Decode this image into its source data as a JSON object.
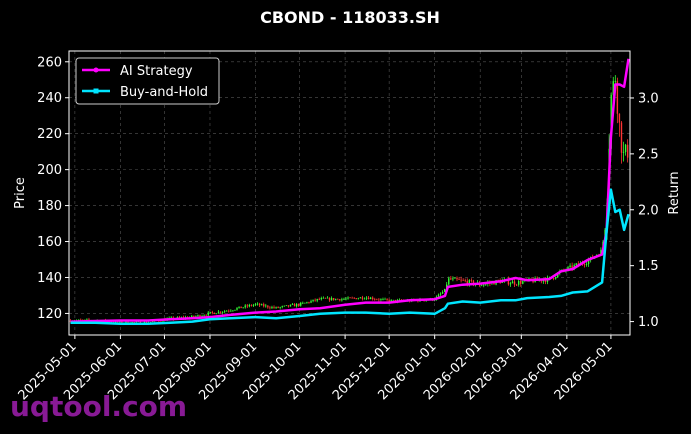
{
  "chart_data": {
    "type": "line",
    "title": "CBOND - 118033.SH",
    "xlabel": "",
    "ylabel": "Price",
    "y2label": "Return",
    "xlim": [
      "2025-04-27",
      "2026-05-14"
    ],
    "ylim": [
      108,
      266
    ],
    "y2lim": [
      0.88,
      3.42
    ],
    "x_ticks": [
      "2025-05-01",
      "2025-06-01",
      "2025-07-01",
      "2025-08-01",
      "2025-09-01",
      "2025-10-01",
      "2025-11-01",
      "2025-12-01",
      "2026-01-01",
      "2026-02-01",
      "2026-03-01",
      "2026-04-01",
      "2026-05-01"
    ],
    "y_ticks": [
      120,
      140,
      160,
      180,
      200,
      220,
      240,
      260
    ],
    "y2_ticks": [
      1.0,
      1.5,
      2.0,
      2.5,
      3.0
    ],
    "grid": true,
    "legend_position": "top-left",
    "series": [
      {
        "name": "AI Strategy",
        "axis": "right",
        "color": "#ff00ff",
        "marker": "circle",
        "points": [
          [
            "2025-04-28",
            1.0
          ],
          [
            "2025-05-15",
            1.005
          ],
          [
            "2025-06-01",
            1.01
          ],
          [
            "2025-06-20",
            1.01
          ],
          [
            "2025-07-05",
            1.02
          ],
          [
            "2025-07-20",
            1.03
          ],
          [
            "2025-08-01",
            1.04
          ],
          [
            "2025-08-15",
            1.06
          ],
          [
            "2025-09-01",
            1.08
          ],
          [
            "2025-09-15",
            1.09
          ],
          [
            "2025-10-01",
            1.11
          ],
          [
            "2025-10-15",
            1.12
          ],
          [
            "2025-11-01",
            1.15
          ],
          [
            "2025-11-15",
            1.17
          ],
          [
            "2025-12-01",
            1.17
          ],
          [
            "2025-12-15",
            1.19
          ],
          [
            "2026-01-01",
            1.2
          ],
          [
            "2026-01-08",
            1.23
          ],
          [
            "2026-01-10",
            1.31
          ],
          [
            "2026-01-20",
            1.33
          ],
          [
            "2026-02-01",
            1.34
          ],
          [
            "2026-02-15",
            1.36
          ],
          [
            "2026-02-25",
            1.39
          ],
          [
            "2026-03-05",
            1.37
          ],
          [
            "2026-03-20",
            1.38
          ],
          [
            "2026-03-28",
            1.45
          ],
          [
            "2026-04-05",
            1.47
          ],
          [
            "2026-04-15",
            1.55
          ],
          [
            "2026-04-25",
            1.6
          ],
          [
            "2026-04-28",
            1.8
          ],
          [
            "2026-05-01",
            2.65
          ],
          [
            "2026-05-04",
            3.12
          ],
          [
            "2026-05-07",
            3.12
          ],
          [
            "2026-05-10",
            3.1
          ],
          [
            "2026-05-13",
            3.35
          ]
        ]
      },
      {
        "name": "Buy-and-Hold",
        "axis": "right",
        "color": "#00e5ff",
        "marker": "square",
        "points": [
          [
            "2025-04-28",
            0.99
          ],
          [
            "2025-05-15",
            0.99
          ],
          [
            "2025-06-01",
            0.98
          ],
          [
            "2025-06-20",
            0.98
          ],
          [
            "2025-07-05",
            0.99
          ],
          [
            "2025-07-20",
            1.0
          ],
          [
            "2025-08-01",
            1.02
          ],
          [
            "2025-08-15",
            1.03
          ],
          [
            "2025-09-01",
            1.04
          ],
          [
            "2025-09-15",
            1.03
          ],
          [
            "2025-10-01",
            1.05
          ],
          [
            "2025-10-15",
            1.07
          ],
          [
            "2025-11-01",
            1.08
          ],
          [
            "2025-11-15",
            1.08
          ],
          [
            "2025-12-01",
            1.07
          ],
          [
            "2025-12-15",
            1.08
          ],
          [
            "2026-01-01",
            1.07
          ],
          [
            "2026-01-08",
            1.12
          ],
          [
            "2026-01-10",
            1.16
          ],
          [
            "2026-01-20",
            1.18
          ],
          [
            "2026-02-01",
            1.17
          ],
          [
            "2026-02-15",
            1.19
          ],
          [
            "2026-02-25",
            1.19
          ],
          [
            "2026-03-05",
            1.21
          ],
          [
            "2026-03-20",
            1.22
          ],
          [
            "2026-03-28",
            1.23
          ],
          [
            "2026-04-05",
            1.26
          ],
          [
            "2026-04-15",
            1.27
          ],
          [
            "2026-04-25",
            1.35
          ],
          [
            "2026-04-28",
            1.8
          ],
          [
            "2026-05-01",
            2.18
          ],
          [
            "2026-05-04",
            1.98
          ],
          [
            "2026-05-07",
            2.0
          ],
          [
            "2026-05-10",
            1.82
          ],
          [
            "2026-05-13",
            1.96
          ]
        ]
      }
    ],
    "price_candles": {
      "axis": "left",
      "up_color": "#33ff33",
      "down_color": "#ff3333",
      "approx_close_path": [
        [
          "2025-04-28",
          116
        ],
        [
          "2025-05-15",
          116
        ],
        [
          "2025-06-01",
          115
        ],
        [
          "2025-06-20",
          115
        ],
        [
          "2025-07-05",
          117
        ],
        [
          "2025-07-20",
          118
        ],
        [
          "2025-08-01",
          120
        ],
        [
          "2025-08-15",
          122
        ],
        [
          "2025-09-01",
          125
        ],
        [
          "2025-09-15",
          123
        ],
        [
          "2025-10-01",
          125
        ],
        [
          "2025-10-15",
          128
        ],
        [
          "2025-11-01",
          128
        ],
        [
          "2025-11-15",
          129
        ],
        [
          "2025-12-01",
          127
        ],
        [
          "2025-12-15",
          127
        ],
        [
          "2026-01-01",
          128
        ],
        [
          "2026-01-08",
          133
        ],
        [
          "2026-01-10",
          139
        ],
        [
          "2026-01-20",
          138
        ],
        [
          "2026-02-01",
          136
        ],
        [
          "2026-02-15",
          138
        ],
        [
          "2026-02-25",
          137
        ],
        [
          "2026-03-05",
          138
        ],
        [
          "2026-03-20",
          139
        ],
        [
          "2026-03-28",
          143
        ],
        [
          "2026-04-05",
          146
        ],
        [
          "2026-04-15",
          149
        ],
        [
          "2026-04-25",
          155
        ],
        [
          "2026-04-28",
          180
        ],
        [
          "2026-05-01",
          240
        ],
        [
          "2026-05-04",
          252
        ],
        [
          "2026-05-07",
          222
        ],
        [
          "2026-05-10",
          205
        ],
        [
          "2026-05-13",
          213
        ]
      ]
    }
  },
  "watermark": "uqtool.com"
}
